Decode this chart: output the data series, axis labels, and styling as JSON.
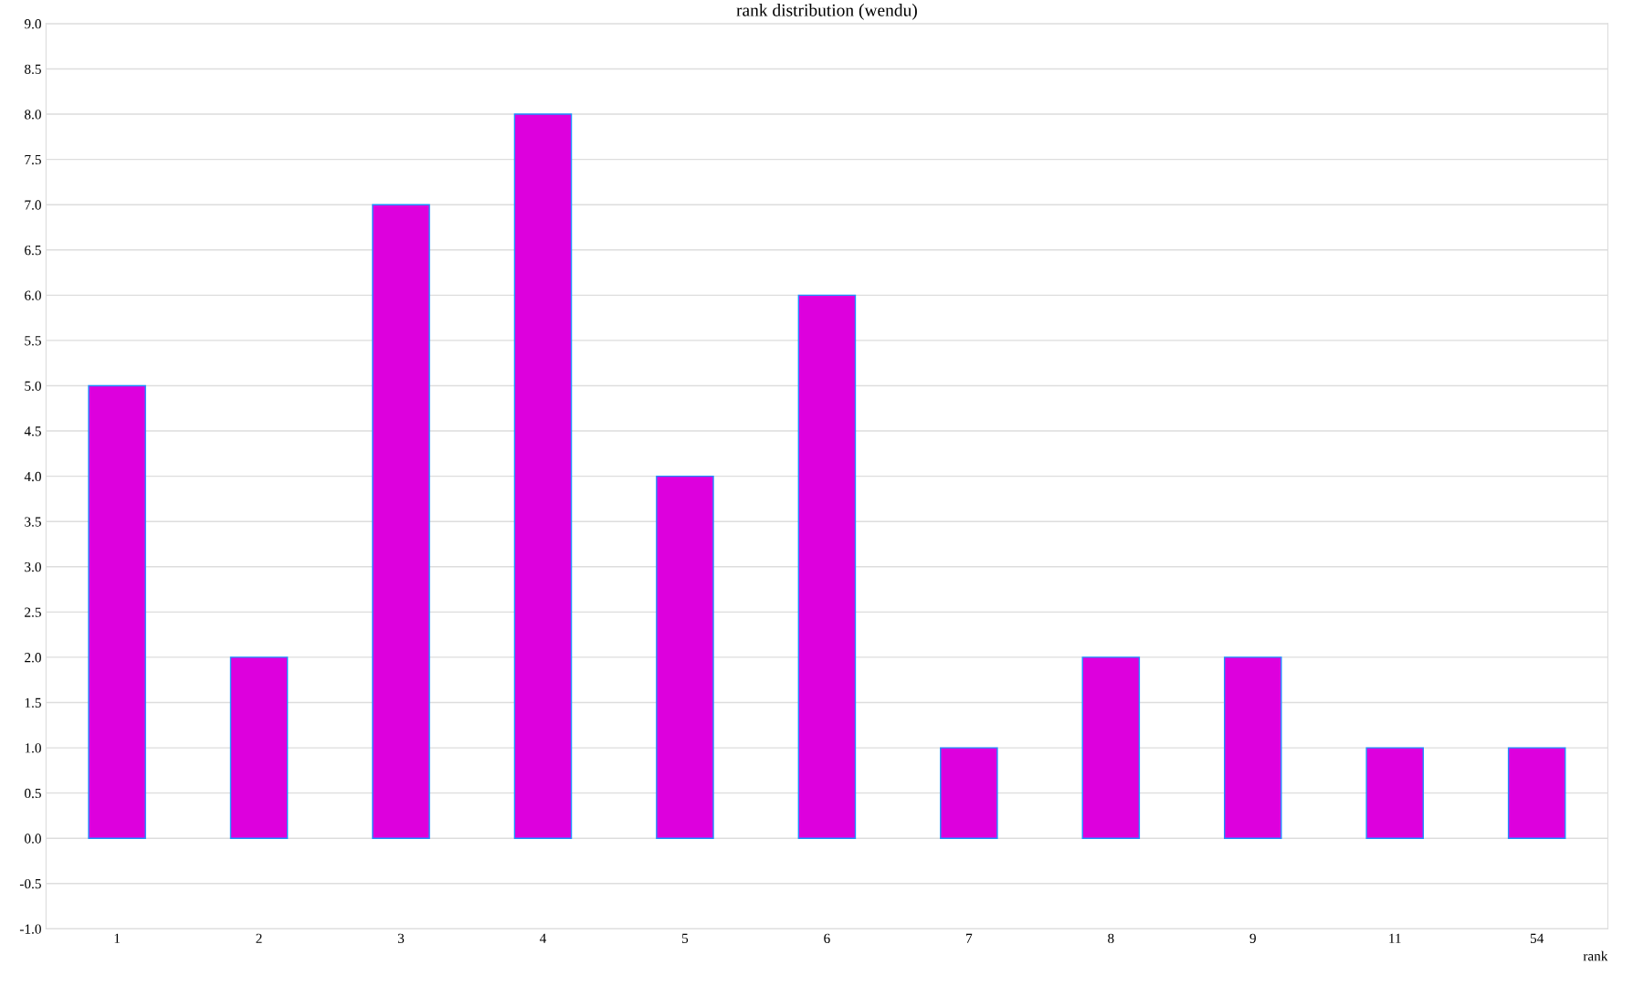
{
  "chart_data": {
    "type": "bar",
    "title": "rank distribution (wendu)",
    "xlabel": "rank",
    "categories": [
      "1",
      "2",
      "3",
      "4",
      "5",
      "6",
      "7",
      "8",
      "9",
      "11",
      "54"
    ],
    "values": [
      5,
      2,
      7,
      8,
      4,
      6,
      1,
      2,
      2,
      1,
      1
    ],
    "color": "#dd00dd",
    "ylim": [
      -1,
      9
    ],
    "yticks": [
      {
        "value": -1,
        "label": "-1.0"
      },
      -0.5,
      {
        "value": 0,
        "label": "0.0"
      },
      0.5,
      {
        "value": 1,
        "label": "1.0"
      },
      1.5,
      {
        "value": 2,
        "label": "2.0"
      },
      2.5,
      {
        "value": 3,
        "label": "3.0"
      },
      3.5,
      {
        "value": 4,
        "label": "4.0"
      },
      4.5,
      {
        "value": 5,
        "label": "5.0"
      },
      5.5,
      {
        "value": 6,
        "label": "6.0"
      },
      6.5,
      {
        "value": 7,
        "label": "7.0"
      },
      7.5,
      {
        "value": 8,
        "label": "8.0"
      },
      8.5,
      {
        "value": 9,
        "label": "9.0"
      }
    ],
    "grid": "y"
  }
}
